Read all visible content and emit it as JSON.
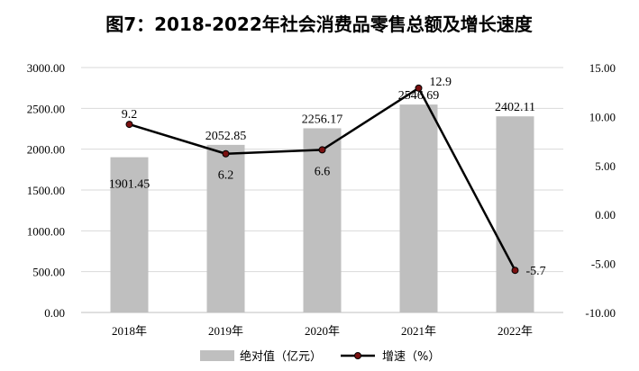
{
  "chart_data": {
    "type": "bar+line",
    "title": "图7：2018-2022年社会消费品零售总额及增长速度",
    "categories": [
      "2018年",
      "2019年",
      "2020年",
      "2021年",
      "2022年"
    ],
    "series": [
      {
        "name": "绝对值（亿元）",
        "type": "bar",
        "axis": "left",
        "values": [
          1901.45,
          2052.85,
          2256.17,
          2546.69,
          2402.11
        ],
        "labels": [
          "1901.45",
          "2052.85",
          "2256.17",
          "2546.69",
          "2402.11"
        ],
        "color": "#bfbfbf"
      },
      {
        "name": "增速（%）",
        "type": "line",
        "axis": "right",
        "values": [
          9.2,
          6.2,
          6.6,
          12.9,
          -5.7
        ],
        "labels": [
          "9.2",
          "6.2",
          "6.6",
          "12.9",
          "-5.7"
        ],
        "color": "#000000",
        "marker_color": "#7a1010"
      }
    ],
    "y_left": {
      "lim": [
        0,
        3000
      ],
      "ticks": [
        "0.00",
        "500.00",
        "1000.00",
        "1500.00",
        "2000.00",
        "2500.00",
        "3000.00"
      ]
    },
    "y_right": {
      "lim": [
        -10,
        15
      ],
      "ticks": [
        "-10.00",
        "-5.00",
        "0.00",
        "5.00",
        "10.00",
        "15.00"
      ]
    },
    "grid": true,
    "legend_position": "bottom"
  }
}
